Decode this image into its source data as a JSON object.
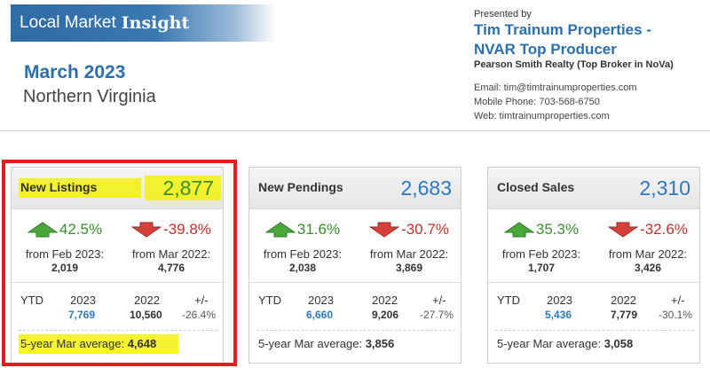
{
  "header": {
    "banner_normal": "Local Market",
    "banner_bold": "Insight",
    "month": "March 2023",
    "region": "Northern Virginia"
  },
  "presenter": {
    "presented_by": "Presented by",
    "name_line1": "Tim Trainum Properties -",
    "name_line2": "NVAR Top Producer",
    "broker": "Pearson Smith Realty (Top Broker in NoVa)",
    "email": "Email: tim@timtrainumproperties.com",
    "phone": "Mobile Phone: 703-568-6750",
    "web": "Web: timtrainumproperties.com"
  },
  "colors": {
    "accent": "#2b79c2",
    "up": "#3a8f2d",
    "down": "#c3302a",
    "highlight": "#f4f21a",
    "annotation": "#e41e1e"
  },
  "cards": [
    {
      "title": "New Listings",
      "total": "2,877",
      "up_pct": "42.5%",
      "up_label": "from Feb 2023:",
      "up_value": "2,019",
      "down_pct": "-39.8%",
      "down_label": "from Mar 2022:",
      "down_value": "4,776",
      "ytd_label": "YTD",
      "year_a": "2023",
      "year_b": "2022",
      "pm_label": "+/-",
      "ytd_a": "7,769",
      "ytd_b": "10,560",
      "ytd_pm": "-26.4%",
      "avg_label": "5-year Mar average:",
      "avg_value": "4,648"
    },
    {
      "title": "New Pendings",
      "total": "2,683",
      "up_pct": "31.6%",
      "up_label": "from Feb 2023:",
      "up_value": "2,038",
      "down_pct": "-30.7%",
      "down_label": "from Mar 2022:",
      "down_value": "3,869",
      "ytd_label": "YTD",
      "year_a": "2023",
      "year_b": "2022",
      "pm_label": "+/-",
      "ytd_a": "6,660",
      "ytd_b": "9,206",
      "ytd_pm": "-27.7%",
      "avg_label": "5-year Mar average:",
      "avg_value": "3,856"
    },
    {
      "title": "Closed Sales",
      "total": "2,310",
      "up_pct": "35.3%",
      "up_label": "from Feb 2023:",
      "up_value": "1,707",
      "down_pct": "-32.6%",
      "down_label": "from Mar 2022:",
      "down_value": "3,426",
      "ytd_label": "YTD",
      "year_a": "2023",
      "year_b": "2022",
      "pm_label": "+/-",
      "ytd_a": "5,436",
      "ytd_b": "7,779",
      "ytd_pm": "-30.1%",
      "avg_label": "5-year Mar average:",
      "avg_value": "3,058"
    }
  ]
}
